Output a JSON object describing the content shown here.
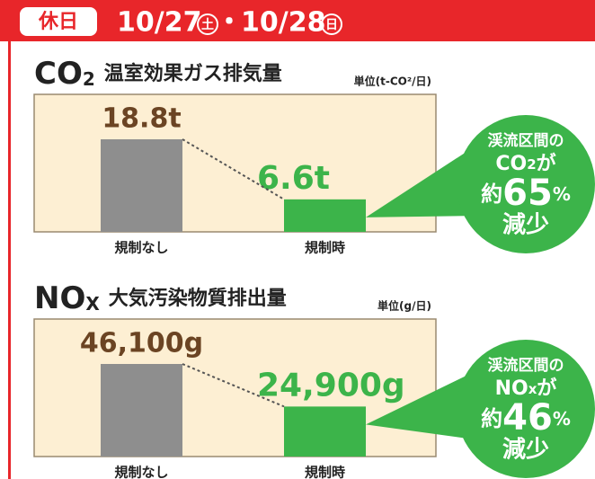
{
  "header": {
    "tag": "休日",
    "dates": [
      {
        "date": "10/27",
        "day": "土"
      },
      {
        "date": "10/28",
        "day": "日"
      }
    ],
    "separator": "・"
  },
  "chart_data": [
    {
      "type": "bar",
      "formula": "CO",
      "formula_sub": "2",
      "title": "温室効果ガス排気量",
      "unit": "単位(t-CO²/日)",
      "categories": [
        "規制なし",
        "規制時"
      ],
      "values": [
        18.8,
        6.6
      ],
      "value_labels": [
        "18.8t",
        "6.6t"
      ],
      "colors": [
        "#8e8e8e",
        "#3cb44a"
      ],
      "label_colors": [
        "#6b4423",
        "#3cb44a"
      ],
      "callout": {
        "line1": "渓流区間の",
        "subject": "CO",
        "subject_sub": "2",
        "particle": "が",
        "prefix": "約",
        "value": 65,
        "unit": "%",
        "suffix": "減少"
      }
    },
    {
      "type": "bar",
      "formula": "NO",
      "formula_sub": "X",
      "title": "大気汚染物質排出量",
      "unit": "単位(g/日)",
      "categories": [
        "規制なし",
        "規制時"
      ],
      "values": [
        46100,
        24900
      ],
      "value_labels": [
        "46,100g",
        "24,900g"
      ],
      "colors": [
        "#8e8e8e",
        "#3cb44a"
      ],
      "label_colors": [
        "#6b4423",
        "#3cb44a"
      ],
      "callout": {
        "line1": "渓流区間の",
        "subject": "NO",
        "subject_sub": "x",
        "particle": "が",
        "prefix": "約",
        "value": 46,
        "unit": "%",
        "suffix": "減少"
      }
    }
  ]
}
